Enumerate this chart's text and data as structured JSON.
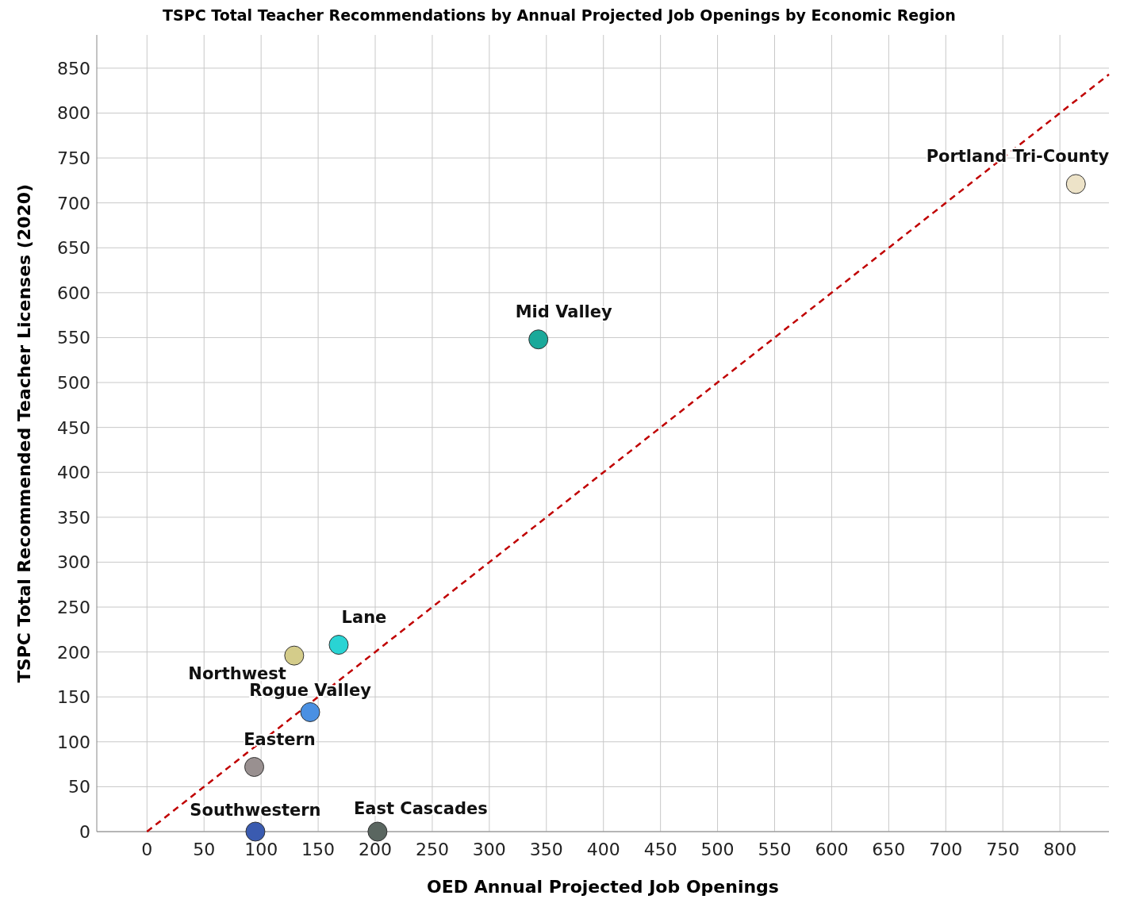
{
  "chart_data": {
    "type": "scatter",
    "title": "TSPC Total Teacher Recommendations by Annual Projected Job Openings by Economic Region",
    "xlabel": "OED Annual Projected Job Openings",
    "ylabel": "TSPC Total Recommended Teacher Licenses (2020)",
    "xlim": [
      -44,
      843
    ],
    "ylim": [
      0,
      887
    ],
    "xticks": [
      0,
      50,
      100,
      150,
      200,
      250,
      300,
      350,
      400,
      450,
      500,
      550,
      600,
      650,
      700,
      750,
      800
    ],
    "yticks": [
      0,
      50,
      100,
      150,
      200,
      250,
      300,
      350,
      400,
      450,
      500,
      550,
      600,
      650,
      700,
      750,
      800,
      850
    ],
    "grid": true,
    "legend": false,
    "marker": "circle",
    "series": [
      {
        "name": "Portland Tri-County",
        "color": "#ede3c8",
        "x": [
          814
        ],
        "values": [
          721
        ]
      },
      {
        "name": "Mid Valley",
        "color": "#1aa99a",
        "x": [
          343
        ],
        "values": [
          548
        ]
      },
      {
        "name": "Lane",
        "color": "#29d4d4",
        "x": [
          168
        ],
        "values": [
          208
        ]
      },
      {
        "name": "Northwest",
        "color": "#d4cc8a",
        "x": [
          129
        ],
        "values": [
          196
        ]
      },
      {
        "name": "Rogue Valley",
        "color": "#4a90e2",
        "x": [
          143
        ],
        "values": [
          133
        ]
      },
      {
        "name": "Eastern",
        "color": "#999090",
        "x": [
          94
        ],
        "values": [
          72
        ]
      },
      {
        "name": "Southwestern",
        "color": "#3a5bb0",
        "x": [
          95
        ],
        "values": [
          0
        ]
      },
      {
        "name": "East Cascades",
        "color": "#5a6660",
        "x": [
          202
        ],
        "values": [
          0
        ]
      },
      {
        "type": "line",
        "color": "#c00000",
        "line_style": "dashed",
        "marker": "none",
        "x": [
          0,
          843
        ],
        "values": [
          0,
          843
        ]
      }
    ]
  }
}
